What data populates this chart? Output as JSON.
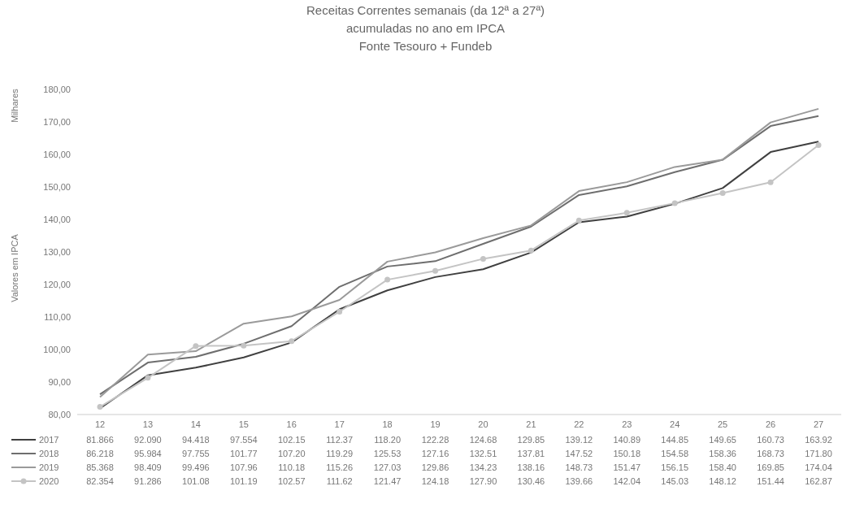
{
  "chart_data": {
    "type": "line",
    "title": "Receitas Correntes semanais (da 12ª a 27ª)",
    "subtitle": "acumuladas no ano em IPCA",
    "annotations": [
      "Fonte Tesouro + Fundeb",
      "Milhares"
    ],
    "ylabel": "Valores em IPCA",
    "categories": [
      "12",
      "13",
      "14",
      "15",
      "16",
      "17",
      "18",
      "19",
      "20",
      "21",
      "22",
      "23",
      "24",
      "25",
      "26",
      "27"
    ],
    "ylim": [
      80,
      180
    ],
    "yticks": [
      {
        "value": 80,
        "label": "80,00"
      },
      {
        "value": 90,
        "label": "90,00"
      },
      {
        "value": 100,
        "label": "100,00"
      },
      {
        "value": 110,
        "label": "110,00"
      },
      {
        "value": 120,
        "label": "120,00"
      },
      {
        "value": 130,
        "label": "130,00"
      },
      {
        "value": 140,
        "label": "140,00"
      },
      {
        "value": 150,
        "label": "150,00"
      },
      {
        "value": 160,
        "label": "160,00"
      },
      {
        "value": 170,
        "label": "170,00"
      },
      {
        "value": 180,
        "label": "180,00"
      }
    ],
    "grid": false,
    "legend": "bottom",
    "series": [
      {
        "name": "2017",
        "color": "#404040",
        "marker": "none",
        "values": [
          81.866,
          92.09,
          94.418,
          97.554,
          102.15,
          112.37,
          118.2,
          122.28,
          124.68,
          129.85,
          139.12,
          140.89,
          144.85,
          149.65,
          160.73,
          163.92
        ],
        "value_labels": [
          "81.866",
          "92.090",
          "94.418",
          "97.554",
          "102.15",
          "112.37",
          "118.20",
          "122.28",
          "124.68",
          "129.85",
          "139.12",
          "140.89",
          "144.85",
          "149.65",
          "160.73",
          "163.92"
        ]
      },
      {
        "name": "2018",
        "color": "#6e6e6e",
        "marker": "none",
        "values": [
          86.218,
          95.984,
          97.755,
          101.77,
          107.2,
          119.29,
          125.53,
          127.16,
          132.51,
          137.81,
          147.52,
          150.18,
          154.58,
          158.36,
          168.73,
          171.8
        ],
        "value_labels": [
          "86.218",
          "95.984",
          "97.755",
          "101.77",
          "107.20",
          "119.29",
          "125.53",
          "127.16",
          "132.51",
          "137.81",
          "147.52",
          "150.18",
          "154.58",
          "158.36",
          "168.73",
          "171.80"
        ]
      },
      {
        "name": "2019",
        "color": "#9a9a9a",
        "marker": "none",
        "values": [
          85.368,
          98.409,
          99.496,
          107.96,
          110.18,
          115.26,
          127.03,
          129.86,
          134.23,
          138.16,
          148.73,
          151.47,
          156.15,
          158.4,
          169.85,
          174.04
        ],
        "value_labels": [
          "85.368",
          "98.409",
          "99.496",
          "107.96",
          "110.18",
          "115.26",
          "127.03",
          "129.86",
          "134.23",
          "138.16",
          "148.73",
          "151.47",
          "156.15",
          "158.40",
          "169.85",
          "174.04"
        ]
      },
      {
        "name": "2020",
        "color": "#c4c4c4",
        "marker": "circle",
        "values": [
          82.354,
          91.286,
          101.08,
          101.19,
          102.57,
          111.62,
          121.47,
          124.18,
          127.9,
          130.46,
          139.66,
          142.04,
          145.03,
          148.12,
          151.44,
          162.87
        ],
        "value_labels": [
          "82.354",
          "91.286",
          "101.08",
          "101.19",
          "102.57",
          "111.62",
          "121.47",
          "124.18",
          "127.90",
          "130.46",
          "139.66",
          "142.04",
          "145.03",
          "148.12",
          "151.44",
          "162.87"
        ]
      }
    ]
  }
}
